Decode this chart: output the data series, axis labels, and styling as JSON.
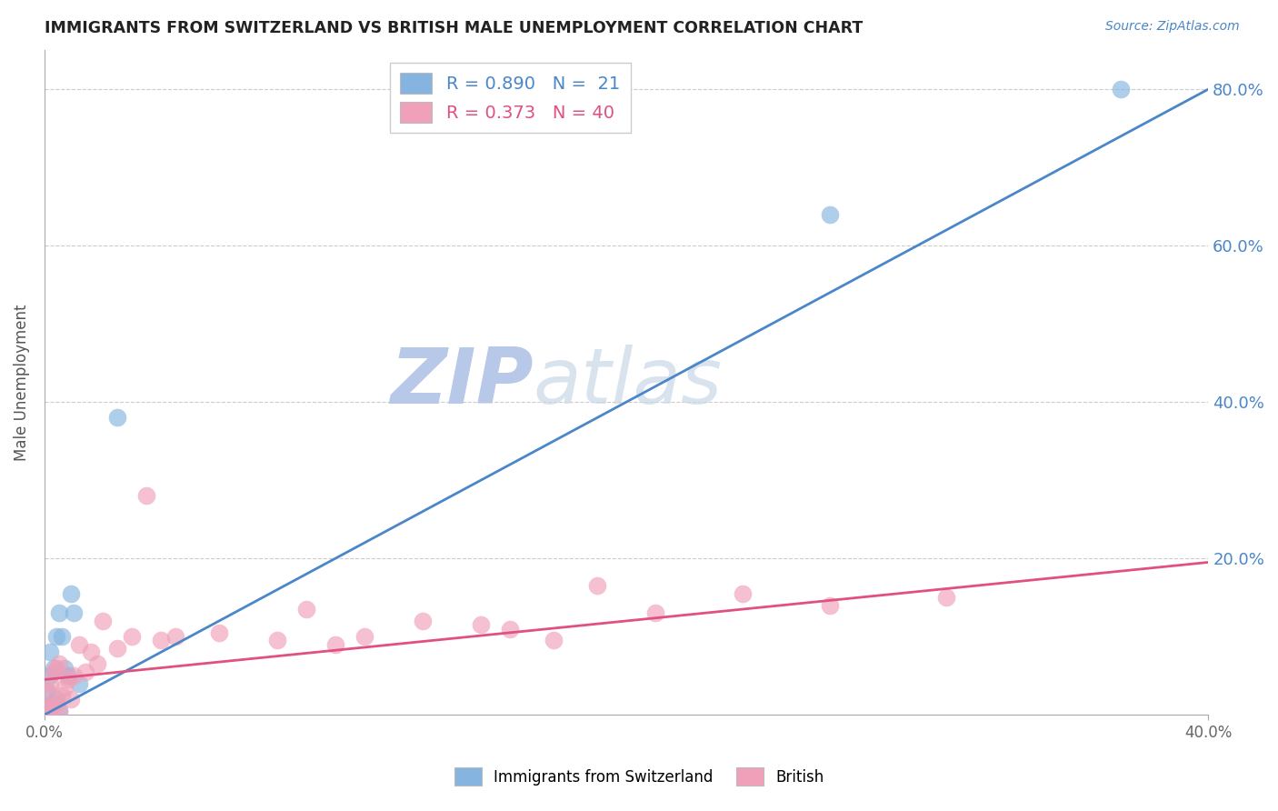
{
  "title": "IMMIGRANTS FROM SWITZERLAND VS BRITISH MALE UNEMPLOYMENT CORRELATION CHART",
  "source_text": "Source: ZipAtlas.com",
  "ylabel": "Male Unemployment",
  "x_min": 0.0,
  "x_max": 0.4,
  "y_min": 0.0,
  "y_max": 0.85,
  "y_ticks_right": [
    0.2,
    0.4,
    0.6,
    0.8
  ],
  "legend_r1": "R = 0.890",
  "legend_n1": "N =  21",
  "legend_r2": "R = 0.373",
  "legend_n2": "N = 40",
  "blue_color": "#85b4e0",
  "pink_color": "#f0a0b8",
  "blue_line_color": "#4a86c8",
  "pink_line_color": "#e05080",
  "watermark_color": "#d8e4f5",
  "background_color": "#ffffff",
  "grid_color": "#cccccc",
  "blue_scatter_x": [
    0.0005,
    0.001,
    0.001,
    0.002,
    0.002,
    0.002,
    0.003,
    0.003,
    0.004,
    0.004,
    0.005,
    0.005,
    0.006,
    0.007,
    0.008,
    0.009,
    0.01,
    0.012,
    0.025,
    0.27,
    0.37
  ],
  "blue_scatter_y": [
    0.005,
    0.008,
    0.03,
    0.01,
    0.05,
    0.08,
    0.015,
    0.06,
    0.02,
    0.1,
    0.005,
    0.13,
    0.1,
    0.06,
    0.05,
    0.155,
    0.13,
    0.04,
    0.38,
    0.64,
    0.8
  ],
  "pink_scatter_x": [
    0.0005,
    0.001,
    0.001,
    0.002,
    0.002,
    0.003,
    0.003,
    0.004,
    0.004,
    0.005,
    0.005,
    0.006,
    0.007,
    0.008,
    0.009,
    0.01,
    0.012,
    0.014,
    0.016,
    0.018,
    0.02,
    0.025,
    0.03,
    0.035,
    0.04,
    0.045,
    0.06,
    0.08,
    0.09,
    0.1,
    0.11,
    0.13,
    0.15,
    0.16,
    0.175,
    0.19,
    0.21,
    0.24,
    0.27,
    0.31
  ],
  "pink_scatter_y": [
    0.01,
    0.005,
    0.03,
    0.008,
    0.04,
    0.012,
    0.055,
    0.015,
    0.06,
    0.005,
    0.065,
    0.025,
    0.035,
    0.045,
    0.02,
    0.05,
    0.09,
    0.055,
    0.08,
    0.065,
    0.12,
    0.085,
    0.1,
    0.28,
    0.095,
    0.1,
    0.105,
    0.095,
    0.135,
    0.09,
    0.1,
    0.12,
    0.115,
    0.11,
    0.095,
    0.165,
    0.13,
    0.155,
    0.14,
    0.15
  ],
  "blue_line_x": [
    0.0,
    0.4
  ],
  "blue_line_y": [
    0.0,
    0.8
  ],
  "pink_line_x": [
    0.0,
    0.4
  ],
  "pink_line_y": [
    0.045,
    0.195
  ]
}
